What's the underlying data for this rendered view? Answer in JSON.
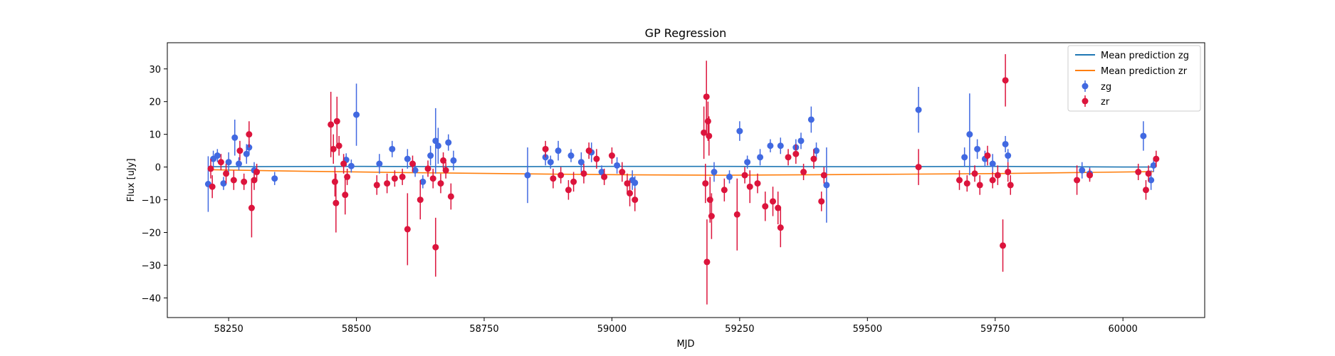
{
  "chart_data": {
    "type": "scatter",
    "title": "GP Regression",
    "xlabel": "MJD",
    "ylabel": "Flux [uJy]",
    "xlim": [
      58130,
      60160
    ],
    "ylim": [
      -46,
      38
    ],
    "xticks": [
      58250,
      58500,
      58750,
      59000,
      59250,
      59500,
      59750,
      60000
    ],
    "yticks": [
      -40,
      -30,
      -20,
      -10,
      0,
      10,
      20,
      30
    ],
    "grid": false,
    "legend_position": "top-right",
    "lines": [
      {
        "name": "Mean prediction zg",
        "color": "#1f77b4",
        "x": [
          58210,
          58500,
          58750,
          59000,
          59200,
          59500,
          59750,
          60000,
          60060
        ],
        "y": [
          0.1,
          0.2,
          0.1,
          0.2,
          0.2,
          0.1,
          0.2,
          0.0,
          0.0
        ]
      },
      {
        "name": "Mean prediction zr",
        "color": "#ff7f0e",
        "x": [
          58210,
          58400,
          58600,
          58850,
          59050,
          59200,
          59450,
          59750,
          59950,
          60060
        ],
        "y": [
          -0.8,
          -1.3,
          -1.7,
          -2.1,
          -2.4,
          -2.5,
          -2.3,
          -2.0,
          -1.6,
          -1.4
        ]
      }
    ],
    "series": [
      {
        "name": "zg",
        "color": "#4169e1",
        "points": [
          [
            58210,
            -5.2,
            8.5
          ],
          [
            58220,
            2.5,
            2.5
          ],
          [
            58228,
            3.5,
            2.0
          ],
          [
            58240,
            -5.0,
            2.0
          ],
          [
            58250,
            1.5,
            3.0
          ],
          [
            58262,
            9.0,
            5.5
          ],
          [
            58270,
            1.0,
            2.0
          ],
          [
            58285,
            4.0,
            3.0
          ],
          [
            58290,
            6.0,
            2.0
          ],
          [
            58300,
            -1.0,
            2.5
          ],
          [
            58340,
            -3.5,
            2.0
          ],
          [
            58480,
            2.2,
            2.0
          ],
          [
            58490,
            0.3,
            2.0
          ],
          [
            58500,
            16.0,
            9.5
          ],
          [
            58545,
            1.0,
            3.0
          ],
          [
            58570,
            5.5,
            2.5
          ],
          [
            58600,
            2.5,
            3.0
          ],
          [
            58615,
            -1.0,
            2.0
          ],
          [
            58630,
            -4.5,
            2.0
          ],
          [
            58645,
            3.5,
            3.0
          ],
          [
            58655,
            8.0,
            10.0
          ],
          [
            58660,
            6.5,
            5.5
          ],
          [
            58680,
            7.5,
            2.5
          ],
          [
            58690,
            2.0,
            3.0
          ],
          [
            58835,
            -2.5,
            8.5
          ],
          [
            58870,
            3.0,
            2.5
          ],
          [
            58880,
            1.5,
            2.0
          ],
          [
            58895,
            5.0,
            3.0
          ],
          [
            58920,
            3.5,
            2.0
          ],
          [
            58940,
            1.5,
            3.0
          ],
          [
            58960,
            4.5,
            3.0
          ],
          [
            58980,
            -1.5,
            2.0
          ],
          [
            59010,
            0.5,
            2.5
          ],
          [
            59040,
            -4.0,
            3.0
          ],
          [
            59045,
            -4.8,
            2.0
          ],
          [
            59200,
            -1.5,
            3.0
          ],
          [
            59230,
            -3.0,
            2.0
          ],
          [
            59250,
            11.0,
            3.0
          ],
          [
            59265,
            1.5,
            2.0
          ],
          [
            59290,
            3.0,
            2.5
          ],
          [
            59310,
            6.5,
            2.0
          ],
          [
            59330,
            6.5,
            2.5
          ],
          [
            59360,
            6.0,
            2.5
          ],
          [
            59370,
            8.0,
            2.5
          ],
          [
            59390,
            14.5,
            4.0
          ],
          [
            59400,
            5.0,
            2.5
          ],
          [
            59420,
            -5.5,
            11.5
          ],
          [
            59600,
            17.5,
            7.0
          ],
          [
            59690,
            3.0,
            3.0
          ],
          [
            59700,
            10.0,
            12.5
          ],
          [
            59715,
            5.5,
            3.0
          ],
          [
            59730,
            2.5,
            2.5
          ],
          [
            59745,
            1.0,
            3.0
          ],
          [
            59770,
            7.0,
            2.5
          ],
          [
            59775,
            3.5,
            2.0
          ],
          [
            59920,
            -1.0,
            2.5
          ],
          [
            59935,
            -2.0,
            2.0
          ],
          [
            60040,
            9.5,
            4.5
          ],
          [
            60055,
            -4.0,
            3.0
          ],
          [
            60060,
            0.5,
            2.0
          ]
        ]
      },
      {
        "name": "zr",
        "color": "#dc143c",
        "points": [
          [
            58215,
            -0.5,
            3.0
          ],
          [
            58218,
            -6.0,
            3.5
          ],
          [
            58235,
            1.5,
            2.5
          ],
          [
            58245,
            -2.0,
            3.0
          ],
          [
            58260,
            -4.0,
            3.0
          ],
          [
            58272,
            5.0,
            3.0
          ],
          [
            58280,
            -4.5,
            2.5
          ],
          [
            58290,
            10.0,
            4.0
          ],
          [
            58295,
            -12.5,
            9.0
          ],
          [
            58300,
            -4.0,
            3.0
          ],
          [
            58305,
            -1.5,
            2.5
          ],
          [
            58450,
            13.0,
            10.0
          ],
          [
            58455,
            5.5,
            4.5
          ],
          [
            58458,
            -4.5,
            4.5
          ],
          [
            58460,
            -11.0,
            9.0
          ],
          [
            58462,
            14.0,
            7.5
          ],
          [
            58466,
            6.5,
            3.0
          ],
          [
            58475,
            1.0,
            3.0
          ],
          [
            58478,
            -8.5,
            6.0
          ],
          [
            58482,
            -3.0,
            2.5
          ],
          [
            58540,
            -5.5,
            3.0
          ],
          [
            58560,
            -5.0,
            3.0
          ],
          [
            58575,
            -3.5,
            2.5
          ],
          [
            58590,
            -3.0,
            2.5
          ],
          [
            58600,
            -19.0,
            11.0
          ],
          [
            58610,
            1.0,
            2.5
          ],
          [
            58625,
            -10.0,
            6.0
          ],
          [
            58640,
            -0.5,
            2.5
          ],
          [
            58650,
            -3.5,
            3.0
          ],
          [
            58655,
            -24.5,
            9.0
          ],
          [
            58665,
            -5.0,
            3.0
          ],
          [
            58670,
            2.0,
            2.5
          ],
          [
            58675,
            -1.0,
            2.5
          ],
          [
            58685,
            -9.0,
            4.0
          ],
          [
            58870,
            5.5,
            2.5
          ],
          [
            58885,
            -3.5,
            3.0
          ],
          [
            58900,
            -2.5,
            2.5
          ],
          [
            58915,
            -7.0,
            3.0
          ],
          [
            58925,
            -4.5,
            3.0
          ],
          [
            58945,
            -2.0,
            3.0
          ],
          [
            58955,
            5.0,
            2.5
          ],
          [
            58970,
            2.5,
            3.0
          ],
          [
            58985,
            -3.0,
            2.5
          ],
          [
            59000,
            3.5,
            2.5
          ],
          [
            59020,
            -1.5,
            3.0
          ],
          [
            59030,
            -5.0,
            3.0
          ],
          [
            59035,
            -8.0,
            4.0
          ],
          [
            59045,
            -10.0,
            3.5
          ],
          [
            59180,
            10.5,
            8.0
          ],
          [
            59183,
            -5.0,
            6.0
          ],
          [
            59185,
            21.5,
            11.0
          ],
          [
            59186,
            -29.0,
            13.0
          ],
          [
            59188,
            14.0,
            6.0
          ],
          [
            59190,
            9.5,
            6.0
          ],
          [
            59192,
            -10.0,
            7.0
          ],
          [
            59195,
            -15.0,
            7.0
          ],
          [
            59220,
            -7.0,
            3.5
          ],
          [
            59245,
            -14.5,
            11.0
          ],
          [
            59260,
            -2.5,
            2.5
          ],
          [
            59270,
            -6.0,
            5.0
          ],
          [
            59285,
            -5.0,
            3.0
          ],
          [
            59300,
            -12.0,
            4.5
          ],
          [
            59315,
            -10.5,
            4.5
          ],
          [
            59325,
            -12.5,
            5.0
          ],
          [
            59330,
            -18.5,
            6.0
          ],
          [
            59345,
            3.0,
            2.5
          ],
          [
            59360,
            4.0,
            3.0
          ],
          [
            59375,
            -1.5,
            2.5
          ],
          [
            59395,
            2.5,
            3.0
          ],
          [
            59410,
            -10.5,
            3.0
          ],
          [
            59415,
            -2.5,
            2.5
          ],
          [
            59600,
            0.0,
            5.5
          ],
          [
            59680,
            -4.0,
            3.0
          ],
          [
            59695,
            -5.0,
            2.5
          ],
          [
            59710,
            -2.0,
            2.5
          ],
          [
            59720,
            -5.5,
            3.0
          ],
          [
            59735,
            3.5,
            3.0
          ],
          [
            59745,
            -4.0,
            2.5
          ],
          [
            59755,
            -2.5,
            3.0
          ],
          [
            59765,
            -24.0,
            8.0
          ],
          [
            59770,
            26.5,
            8.0
          ],
          [
            59775,
            -1.5,
            3.0
          ],
          [
            59780,
            -5.5,
            3.0
          ],
          [
            59910,
            -4.0,
            4.5
          ],
          [
            59935,
            -2.5,
            2.0
          ],
          [
            60030,
            -1.5,
            2.5
          ],
          [
            60045,
            -7.0,
            3.0
          ],
          [
            60050,
            -2.0,
            2.5
          ],
          [
            60065,
            2.5,
            2.5
          ]
        ]
      }
    ]
  }
}
